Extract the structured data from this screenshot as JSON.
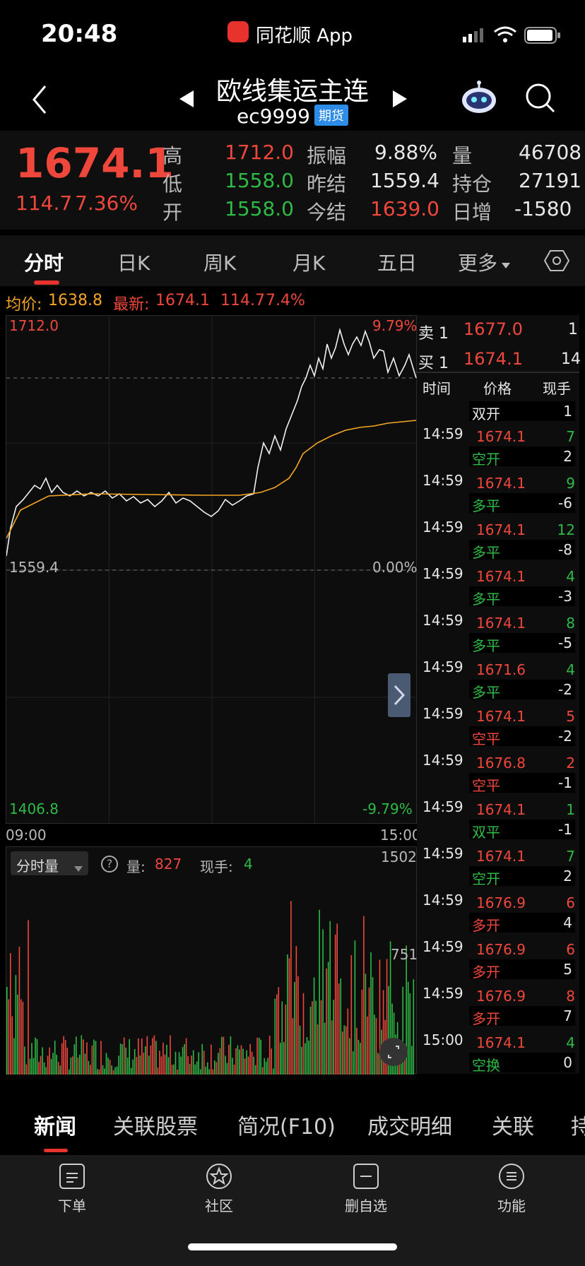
{
  "status_bar": {
    "time": "20:48",
    "app_name": "同花顺 App"
  },
  "header": {
    "title": "欧线集运主连",
    "code": "ec9999",
    "tag": "期货"
  },
  "quote": {
    "price": "1674.1",
    "change": "114.7",
    "change_pct": "7.36%",
    "high_label": "高",
    "high": "1712.0",
    "low_label": "低",
    "low": "1558.0",
    "open_label": "开",
    "open": "1558.0",
    "amplitude_label": "振幅",
    "amplitude": "9.88%",
    "prev_settle_label": "昨结",
    "prev_settle": "1559.4",
    "today_settle_label": "今结",
    "today_settle": "1639.0",
    "volume_label": "量",
    "volume": "46708",
    "open_interest_label": "持仓",
    "open_interest": "27191",
    "daily_change_label": "日增",
    "daily_change": "-1580"
  },
  "tabs": [
    "分时",
    "日K",
    "周K",
    "月K",
    "五日",
    "更多"
  ],
  "avg_line": {
    "avg_label": "均价:",
    "avg": "1638.8",
    "latest_label": "最新:",
    "latest": "1674.1",
    "chg": "114.7",
    "pct": "7.4%"
  },
  "chart": {
    "top_price": "1712.0",
    "top_pct": "9.79%",
    "mid_price": "1559.4",
    "mid_pct": "0.00%",
    "bottom_price": "1406.8",
    "bottom_pct": "-9.79%",
    "time_start": "09:00",
    "time_end": "15:00"
  },
  "volume": {
    "selector_label": "分时量",
    "qty_label": "量:",
    "qty": "827",
    "hand_label": "现手:",
    "hand": "4",
    "max": "1502",
    "mid": "751"
  },
  "trades": {
    "sell1_label": "卖 1",
    "sell1_price": "1677.0",
    "sell1_qty": "1",
    "buy1_label": "买 1",
    "buy1_price": "1674.1",
    "buy1_qty": "14",
    "headers": [
      "时间",
      "价格",
      "现手"
    ],
    "first_type": "双开",
    "first_qty": "1",
    "rows": [
      {
        "time": "14:59",
        "price": "1674.1",
        "hand": "7",
        "type": "空开",
        "net": "2",
        "pc": "red",
        "hc": "green",
        "tc": "green"
      },
      {
        "time": "14:59",
        "price": "1674.1",
        "hand": "9",
        "type": "多平",
        "net": "-6",
        "pc": "red",
        "hc": "green",
        "tc": "green"
      },
      {
        "time": "14:59",
        "price": "1674.1",
        "hand": "12",
        "type": "多平",
        "net": "-8",
        "pc": "red",
        "hc": "green",
        "tc": "green"
      },
      {
        "time": "14:59",
        "price": "1674.1",
        "hand": "4",
        "type": "多平",
        "net": "-3",
        "pc": "red",
        "hc": "green",
        "tc": "green"
      },
      {
        "time": "14:59",
        "price": "1674.1",
        "hand": "8",
        "type": "多平",
        "net": "-5",
        "pc": "red",
        "hc": "green",
        "tc": "green"
      },
      {
        "time": "14:59",
        "price": "1671.6",
        "hand": "4",
        "type": "多平",
        "net": "-2",
        "pc": "red",
        "hc": "green",
        "tc": "green"
      },
      {
        "time": "14:59",
        "price": "1674.1",
        "hand": "5",
        "type": "空平",
        "net": "-2",
        "pc": "red",
        "hc": "red",
        "tc": "red"
      },
      {
        "time": "14:59",
        "price": "1676.8",
        "hand": "2",
        "type": "空平",
        "net": "-1",
        "pc": "red",
        "hc": "red",
        "tc": "red"
      },
      {
        "time": "14:59",
        "price": "1674.1",
        "hand": "1",
        "type": "双平",
        "net": "-1",
        "pc": "red",
        "hc": "green",
        "tc": "green"
      },
      {
        "time": "14:59",
        "price": "1674.1",
        "hand": "7",
        "type": "空开",
        "net": "2",
        "pc": "red",
        "hc": "green",
        "tc": "green"
      },
      {
        "time": "14:59",
        "price": "1676.9",
        "hand": "6",
        "type": "多开",
        "net": "4",
        "pc": "red",
        "hc": "red",
        "tc": "red"
      },
      {
        "time": "14:59",
        "price": "1676.9",
        "hand": "6",
        "type": "多开",
        "net": "5",
        "pc": "red",
        "hc": "red",
        "tc": "red"
      },
      {
        "time": "14:59",
        "price": "1676.9",
        "hand": "8",
        "type": "多开",
        "net": "7",
        "pc": "red",
        "hc": "red",
        "tc": "red"
      },
      {
        "time": "15:00",
        "price": "1674.1",
        "hand": "4",
        "type": "空换",
        "net": "0",
        "pc": "red",
        "hc": "green",
        "tc": "green"
      }
    ]
  },
  "bottom_tabs": [
    "新闻",
    "关联股票",
    "简况(F10)",
    "成交明细",
    "关联",
    "持"
  ],
  "toolbar": [
    "下单",
    "社区",
    "删自选",
    "功能"
  ]
}
